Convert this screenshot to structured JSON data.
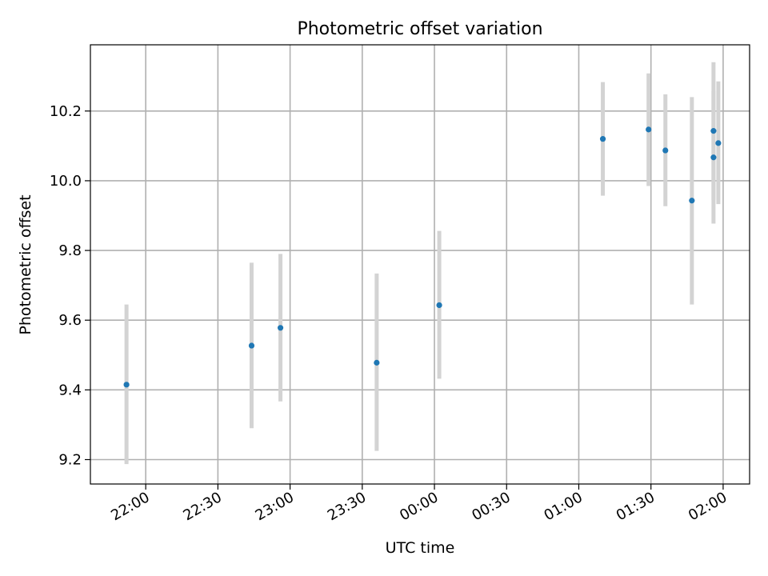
{
  "chart_data": {
    "type": "scatter",
    "title": "Photometric offset variation",
    "xlabel": "UTC time",
    "ylabel": "Photometric offset",
    "x_unit": "time of day (UTC), HH:MM",
    "xlim": [
      "21:37",
      "02:11"
    ],
    "ylim": [
      9.13,
      10.39
    ],
    "x_ticks": [
      "22:00",
      "22:30",
      "23:00",
      "23:30",
      "00:00",
      "00:30",
      "01:00",
      "01:30",
      "02:00"
    ],
    "y_ticks": [
      "9.2",
      "9.4",
      "9.6",
      "9.8",
      "10.0",
      "10.2"
    ],
    "y_tick_values": [
      9.2,
      9.4,
      9.6,
      9.8,
      10.0,
      10.2
    ],
    "grid": true,
    "colors": {
      "marker": "#1f77b4",
      "errorbar": "#d3d3d3"
    },
    "series": [
      {
        "points": [
          {
            "x": "21:52",
            "y": 9.415,
            "yerr_low": 9.187,
            "yerr_high": 9.645
          },
          {
            "x": "22:44",
            "y": 9.527,
            "yerr_low": 9.29,
            "yerr_high": 9.765
          },
          {
            "x": "22:56",
            "y": 9.578,
            "yerr_low": 9.367,
            "yerr_high": 9.79
          },
          {
            "x": "23:36",
            "y": 9.478,
            "yerr_low": 9.225,
            "yerr_high": 9.734
          },
          {
            "x": "00:02",
            "y": 9.643,
            "yerr_low": 9.432,
            "yerr_high": 9.856
          },
          {
            "x": "01:10",
            "y": 10.12,
            "yerr_low": 9.957,
            "yerr_high": 10.283
          },
          {
            "x": "01:29",
            "y": 10.147,
            "yerr_low": 9.985,
            "yerr_high": 10.308
          },
          {
            "x": "01:36",
            "y": 10.087,
            "yerr_low": 9.927,
            "yerr_high": 10.248
          },
          {
            "x": "01:47",
            "y": 9.943,
            "yerr_low": 9.645,
            "yerr_high": 10.24
          },
          {
            "x": "01:56",
            "y": 10.067,
            "yerr_low": 9.877,
            "yerr_high": 10.258
          },
          {
            "x": "01:56",
            "y": 10.143,
            "yerr_low": 9.945,
            "yerr_high": 10.34
          },
          {
            "x": "01:58",
            "y": 10.108,
            "yerr_low": 9.933,
            "yerr_high": 10.285
          }
        ]
      }
    ]
  }
}
